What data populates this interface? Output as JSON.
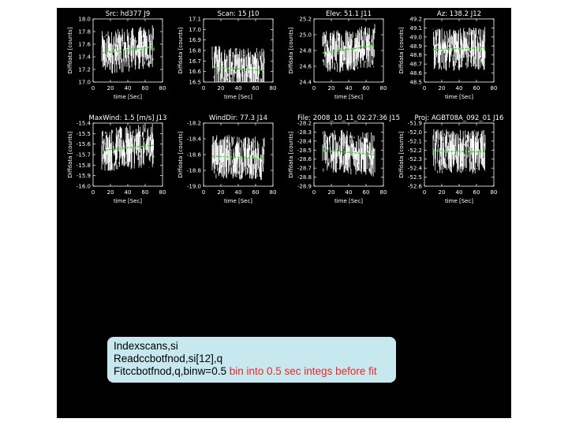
{
  "colors": {
    "background": "#000000",
    "data": "#ffffff",
    "fit": "#35e02a",
    "comment": "#e8282a",
    "command_box": "#c7e8ee"
  },
  "commands": [
    {
      "text": "Indexscans,si",
      "comment": ""
    },
    {
      "text": "Readccbotfnod,si[12],q",
      "comment": ""
    },
    {
      "text": "Fitccbotfnod,q,binw=0.5",
      "comment": "bin into 0.5 sec integs before fit"
    }
  ],
  "chart_data": [
    {
      "type": "line",
      "title": "Src:  hd377  J9",
      "xlabel": "time [Sec]",
      "ylabel": "Diffdata [counts]",
      "xlim": [
        0,
        80
      ],
      "ylim": [
        17.0,
        18.0
      ],
      "yticks": [
        "18.0",
        "17.8",
        "17.6",
        "17.4",
        "17.2",
        "17.0"
      ],
      "xticks": [
        "0",
        "20",
        "40",
        "60",
        "80"
      ],
      "data_x_range": [
        10,
        70
      ],
      "fit": [
        17.46,
        17.56
      ]
    },
    {
      "type": "line",
      "title": "Scan:  15  J10",
      "xlabel": "time [Sec]",
      "ylabel": "Diffdata [counts]",
      "xlim": [
        0,
        80
      ],
      "ylim": [
        16.5,
        17.1
      ],
      "yticks": [
        "17.1",
        "17.0",
        "16.9",
        "16.8",
        "16.7",
        "16.6",
        "16.5"
      ],
      "xticks": [
        "0",
        "20",
        "40",
        "60",
        "80"
      ],
      "data_x_range": [
        10,
        70
      ],
      "fit": [
        16.64,
        16.61
      ]
    },
    {
      "type": "line",
      "title": "Elev:   51.1  J11",
      "xlabel": "time [Sec]",
      "ylabel": "Diffdata [counts]",
      "xlim": [
        0,
        80
      ],
      "ylim": [
        24.4,
        25.2
      ],
      "yticks": [
        "25.2",
        "25.0",
        "24.8",
        "24.6",
        "24.4"
      ],
      "xticks": [
        "0",
        "20",
        "40",
        "60",
        "80"
      ],
      "data_x_range": [
        10,
        70
      ],
      "fit": [
        24.77,
        24.86
      ]
    },
    {
      "type": "line",
      "title": "Az:  138.2  J12",
      "xlabel": "time [Sec]",
      "ylabel": "Diffdata [counts]",
      "xlim": [
        0,
        80
      ],
      "ylim": [
        48.5,
        49.2
      ],
      "yticks": [
        "49.2",
        "49.1",
        "49.0",
        "48.9",
        "48.8",
        "48.7",
        "48.6",
        "48.5"
      ],
      "xticks": [
        "0",
        "20",
        "40",
        "60",
        "80"
      ],
      "data_x_range": [
        10,
        70
      ],
      "fit": [
        48.86,
        48.88
      ]
    },
    {
      "type": "line",
      "title": "MaxWind:    1.5  [m/s]  J13",
      "xlabel": "time [Sec]",
      "ylabel": "Diffdata [counts]",
      "xlim": [
        0,
        80
      ],
      "ylim": [
        -16.0,
        -15.4
      ],
      "yticks": [
        "-15.4",
        "-15.5",
        "-15.6",
        "-15.7",
        "-15.8",
        "-15.9",
        "-16.0"
      ],
      "xticks": [
        "0",
        "20",
        "40",
        "60",
        "80"
      ],
      "data_x_range": [
        10,
        70
      ],
      "fit": [
        -15.66,
        -15.61
      ]
    },
    {
      "type": "line",
      "title": "WindDir:   77.3  J14",
      "xlabel": "time [Sec]",
      "ylabel": "Diffdata [counts]",
      "xlim": [
        0,
        80
      ],
      "ylim": [
        -19.0,
        -18.2
      ],
      "yticks": [
        "-18.2",
        "-18.4",
        "-18.6",
        "-18.8",
        "-19.0"
      ],
      "xticks": [
        "0",
        "20",
        "40",
        "60",
        "80"
      ],
      "data_x_range": [
        10,
        70
      ],
      "fit": [
        -18.62,
        -18.65
      ]
    },
    {
      "type": "line",
      "title": "File:  2008_10_11_02:27:36  J15",
      "xlabel": "time [Sec]",
      "ylabel": "Diffdata [counts]",
      "xlim": [
        0,
        80
      ],
      "ylim": [
        -28.9,
        -28.2
      ],
      "yticks": [
        "-28.2",
        "-28.3",
        "-28.4",
        "-28.5",
        "-28.6",
        "-28.7",
        "-28.8",
        "-28.9"
      ],
      "xticks": [
        "0",
        "20",
        "40",
        "60",
        "80"
      ],
      "data_x_range": [
        10,
        70
      ],
      "fit": [
        -28.5,
        -28.55
      ]
    },
    {
      "type": "line",
      "title": "Proj:  AGBT08A_092_01  J16",
      "xlabel": "time [Sec]",
      "ylabel": "Diffdata [counts]",
      "xlim": [
        0,
        80
      ],
      "ylim": [
        -52.6,
        -51.9
      ],
      "yticks": [
        "-51.9",
        "-52.0",
        "-52.1",
        "-52.2",
        "-52.3",
        "-52.4",
        "-52.5",
        "-52.6"
      ],
      "xticks": [
        "0",
        "20",
        "40",
        "60",
        "80"
      ],
      "data_x_range": [
        10,
        70
      ],
      "fit": [
        -52.21,
        -52.22
      ]
    }
  ]
}
